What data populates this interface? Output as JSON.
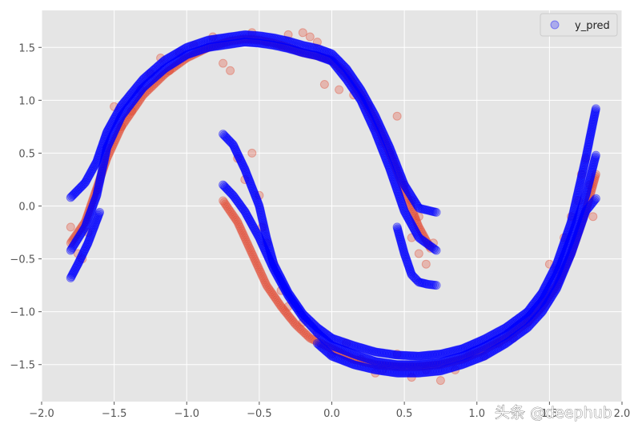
{
  "chart_data": {
    "type": "scatter",
    "title": "",
    "xlabel": "",
    "ylabel": "",
    "xlim": [
      -2.0,
      2.0
    ],
    "ylim": [
      -1.85,
      1.85
    ],
    "x_ticks": [
      -2.0,
      -1.5,
      -1.0,
      -0.5,
      0.0,
      0.5,
      1.0,
      1.5,
      2.0
    ],
    "x_tick_labels": [
      "−2.0",
      "−1.5",
      "−1.0",
      "−0.5",
      "0.0",
      "0.5",
      "1.0",
      "1.5",
      "2.0"
    ],
    "y_ticks": [
      -1.5,
      -1.0,
      -0.5,
      0.0,
      0.5,
      1.0,
      1.5
    ],
    "y_tick_labels": [
      "−1.5",
      "−1.0",
      "−0.5",
      "0.0",
      "0.5",
      "1.0",
      "1.5"
    ],
    "grid": true,
    "legend_position": "top-right",
    "colors": {
      "background": "#E5E5E5",
      "grid": "#FFFFFF",
      "observed": "#E24A33",
      "predicted": "#0000FF"
    },
    "series": [
      {
        "name": "",
        "color": "#E24A33",
        "bands": [
          {
            "x": [
              -1.8,
              -1.7,
              -1.55,
              -1.45,
              -1.3,
              -1.15,
              -1.0,
              -0.85,
              -0.7,
              -0.6,
              -0.5,
              -0.4,
              -0.3,
              -0.2,
              -0.1,
              0.0,
              0.1,
              0.2,
              0.3,
              0.4,
              0.5,
              0.6,
              0.68
            ],
            "y": [
              -0.35,
              -0.15,
              0.45,
              0.75,
              1.05,
              1.25,
              1.4,
              1.5,
              1.56,
              1.58,
              1.57,
              1.54,
              1.5,
              1.45,
              1.42,
              1.38,
              1.25,
              1.05,
              0.8,
              0.5,
              0.15,
              -0.2,
              -0.4
            ]
          },
          {
            "x": [
              -0.75,
              -0.65,
              -0.55,
              -0.45,
              -0.35,
              -0.25,
              -0.15,
              0.0,
              0.15,
              0.3,
              0.45,
              0.6,
              0.75,
              0.9,
              1.05,
              1.2,
              1.35,
              1.45,
              1.55,
              1.65,
              1.75,
              1.82
            ],
            "y": [
              0.05,
              -0.15,
              -0.45,
              -0.75,
              -0.95,
              -1.12,
              -1.25,
              -1.35,
              -1.45,
              -1.5,
              -1.52,
              -1.52,
              -1.5,
              -1.45,
              -1.36,
              -1.25,
              -1.1,
              -0.95,
              -0.75,
              -0.45,
              -0.05,
              0.3
            ]
          }
        ],
        "scatter": [
          [
            -1.8,
            -0.2
          ],
          [
            -1.75,
            -0.45
          ],
          [
            -1.72,
            -0.5
          ],
          [
            -1.68,
            -0.25
          ],
          [
            -1.62,
            0.15
          ],
          [
            -1.55,
            0.55
          ],
          [
            -1.5,
            0.94
          ],
          [
            -1.45,
            0.75
          ],
          [
            -1.38,
            0.9
          ],
          [
            -1.32,
            1.1
          ],
          [
            -1.25,
            1.25
          ],
          [
            -1.18,
            1.4
          ],
          [
            -1.12,
            1.28
          ],
          [
            -1.05,
            1.45
          ],
          [
            -0.95,
            1.52
          ],
          [
            -0.82,
            1.6
          ],
          [
            -0.75,
            1.35
          ],
          [
            -0.7,
            1.28
          ],
          [
            -0.55,
            1.64
          ],
          [
            -0.45,
            1.55
          ],
          [
            -0.35,
            1.52
          ],
          [
            -0.3,
            1.62
          ],
          [
            -0.2,
            1.64
          ],
          [
            -0.15,
            1.6
          ],
          [
            -0.1,
            1.55
          ],
          [
            -0.05,
            1.15
          ],
          [
            0.05,
            1.1
          ],
          [
            0.15,
            1.05
          ],
          [
            0.25,
            0.95
          ],
          [
            0.3,
            0.75
          ],
          [
            0.35,
            0.6
          ],
          [
            0.4,
            0.5
          ],
          [
            0.45,
            0.85
          ],
          [
            0.5,
            0.2
          ],
          [
            0.55,
            0.05
          ],
          [
            0.6,
            -0.1
          ],
          [
            0.55,
            -0.3
          ],
          [
            0.6,
            -0.45
          ],
          [
            0.65,
            -0.55
          ],
          [
            0.7,
            -0.35
          ],
          [
            -0.65,
            0.45
          ],
          [
            -0.6,
            0.25
          ],
          [
            -0.55,
            0.5
          ],
          [
            -0.5,
            0.1
          ],
          [
            -0.48,
            -0.2
          ],
          [
            -0.45,
            -0.35
          ],
          [
            -0.4,
            -0.55
          ],
          [
            -0.35,
            -0.8
          ],
          [
            -0.3,
            -0.95
          ],
          [
            -0.2,
            -1.1
          ],
          [
            -0.1,
            -1.2
          ],
          [
            0.0,
            -1.4
          ],
          [
            0.1,
            -1.3
          ],
          [
            0.2,
            -1.45
          ],
          [
            0.3,
            -1.58
          ],
          [
            0.35,
            -1.55
          ],
          [
            0.45,
            -1.4
          ],
          [
            0.55,
            -1.62
          ],
          [
            0.65,
            -1.55
          ],
          [
            0.75,
            -1.65
          ],
          [
            0.85,
            -1.55
          ],
          [
            0.95,
            -1.4
          ],
          [
            1.05,
            -1.42
          ],
          [
            1.15,
            -1.3
          ],
          [
            1.25,
            -1.25
          ],
          [
            1.35,
            -1.1
          ],
          [
            1.45,
            -0.9
          ],
          [
            1.5,
            -0.55
          ],
          [
            1.55,
            -0.6
          ],
          [
            1.6,
            -0.3
          ],
          [
            1.65,
            -0.1
          ],
          [
            1.7,
            0.05
          ],
          [
            1.72,
            0.3
          ],
          [
            1.75,
            0.45
          ],
          [
            1.78,
            0.2
          ],
          [
            1.8,
            -0.1
          ]
        ]
      },
      {
        "name": "y_pred",
        "color": "#0000FF",
        "curves": [
          {
            "x": [
              -1.8,
              -1.7,
              -1.62,
              -1.55,
              -1.45,
              -1.3,
              -1.15,
              -1.0,
              -0.85,
              -0.7,
              -0.6,
              -0.5,
              -0.4,
              -0.3,
              -0.2,
              -0.1,
              0.0,
              0.1,
              0.2,
              0.3,
              0.4,
              0.5,
              0.6,
              0.72
            ],
            "y": [
              0.08,
              0.22,
              0.42,
              0.7,
              0.95,
              1.2,
              1.38,
              1.5,
              1.57,
              1.6,
              1.62,
              1.61,
              1.59,
              1.56,
              1.52,
              1.49,
              1.44,
              1.3,
              1.1,
              0.85,
              0.55,
              0.2,
              -0.02,
              -0.06
            ]
          },
          {
            "x": [
              -1.8,
              -1.7,
              -1.62,
              -1.55,
              -1.45,
              -1.3,
              -1.15,
              -1.0,
              -0.85,
              -0.7,
              -0.6,
              -0.5,
              -0.4,
              -0.3,
              -0.2,
              -0.1,
              0.0,
              0.1,
              0.2,
              0.3,
              0.4,
              0.5,
              0.6,
              0.72
            ],
            "y": [
              -0.42,
              -0.2,
              0.1,
              0.55,
              0.85,
              1.12,
              1.3,
              1.43,
              1.5,
              1.53,
              1.55,
              1.54,
              1.52,
              1.49,
              1.45,
              1.42,
              1.37,
              1.2,
              1.0,
              0.7,
              0.35,
              -0.05,
              -0.3,
              -0.42
            ]
          },
          {
            "x": [
              -1.8,
              -1.75,
              -1.68,
              -1.6
            ],
            "y": [
              -0.68,
              -0.55,
              -0.35,
              -0.06
            ]
          },
          {
            "x": [
              0.45,
              0.5,
              0.55,
              0.6,
              0.66,
              0.72
            ],
            "y": [
              -0.2,
              -0.45,
              -0.65,
              -0.72,
              -0.74,
              -0.75
            ]
          },
          {
            "x": [
              -0.75,
              -0.68,
              -0.6,
              -0.5,
              -0.45,
              -0.4,
              -0.3,
              -0.2,
              -0.1,
              0.0,
              0.15,
              0.3,
              0.45,
              0.6,
              0.75,
              0.9,
              1.05,
              1.2,
              1.35,
              1.45,
              1.55,
              1.65,
              1.75,
              1.82
            ],
            "y": [
              0.68,
              0.58,
              0.35,
              0.0,
              -0.3,
              -0.55,
              -0.82,
              -1.02,
              -1.15,
              -1.25,
              -1.32,
              -1.38,
              -1.41,
              -1.42,
              -1.4,
              -1.35,
              -1.26,
              -1.15,
              -1.0,
              -0.82,
              -0.55,
              -0.15,
              0.45,
              0.92
            ]
          },
          {
            "x": [
              -0.75,
              -0.68,
              -0.6,
              -0.5,
              -0.4,
              -0.3,
              -0.2,
              -0.1,
              0.0,
              0.15,
              0.3,
              0.45,
              0.6,
              0.75,
              0.9,
              1.05,
              1.2,
              1.35,
              1.45,
              1.55,
              1.65,
              1.75,
              1.82
            ],
            "y": [
              0.2,
              0.1,
              -0.05,
              -0.3,
              -0.6,
              -0.85,
              -1.05,
              -1.2,
              -1.32,
              -1.4,
              -1.47,
              -1.5,
              -1.5,
              -1.48,
              -1.42,
              -1.33,
              -1.22,
              -1.06,
              -0.9,
              -0.65,
              -0.3,
              0.1,
              0.48
            ]
          },
          {
            "x": [
              -0.1,
              0.0,
              0.15,
              0.3,
              0.45,
              0.6,
              0.75,
              0.9,
              1.05,
              1.2,
              1.35,
              1.45,
              1.55,
              1.65,
              1.75,
              1.82
            ],
            "y": [
              -1.3,
              -1.42,
              -1.5,
              -1.55,
              -1.58,
              -1.58,
              -1.56,
              -1.5,
              -1.42,
              -1.3,
              -1.15,
              -1.0,
              -0.78,
              -0.45,
              -0.05,
              0.07
            ]
          }
        ]
      }
    ]
  },
  "legend": {
    "label": "y_pred"
  },
  "watermark": {
    "text": "头条 @deephub"
  }
}
